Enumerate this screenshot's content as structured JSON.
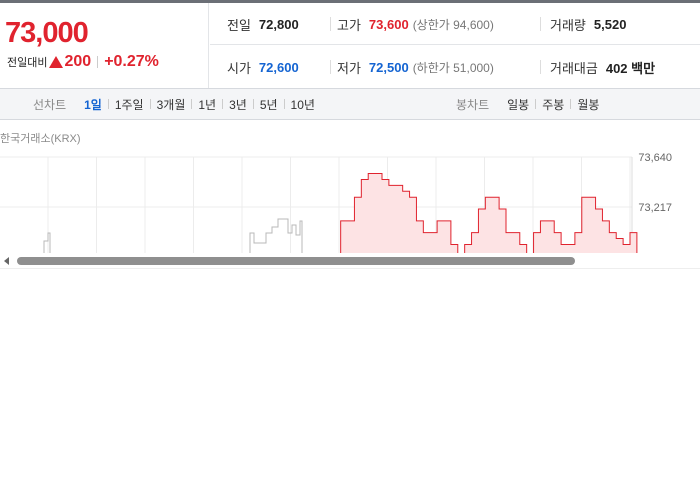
{
  "quote": {
    "price": "73,000",
    "change_label": "전일대비",
    "change_amount": "200",
    "change_pct": "+0.27%",
    "row1": {
      "prev_label": "전일",
      "prev_value": "72,800",
      "high_label": "고가",
      "high_value": "73,600",
      "upper_limit_text": "(상한가 94,600)",
      "volume_label": "거래량",
      "volume_value": "5,520"
    },
    "row2": {
      "open_label": "시가",
      "open_value": "72,600",
      "low_label": "저가",
      "low_value": "72,500",
      "lower_limit_text": "(하한가 51,000)",
      "amount_label": "거래대금",
      "amount_value": "402 백만"
    }
  },
  "line_tabs": {
    "title": "선차트",
    "items": [
      "1일",
      "1주일",
      "3개월",
      "1년",
      "3년",
      "5년",
      "10년"
    ],
    "active": "1일"
  },
  "candle_tabs": {
    "title": "봉차트",
    "items": [
      "일봉",
      "주봉",
      "월봉"
    ]
  },
  "chart_source": "한국거래소(KRX)",
  "colors": {
    "up": "#e0232e",
    "down": "#1464d2",
    "area_fill": "#fde3e4"
  },
  "chart_data": {
    "type": "line",
    "title": "",
    "y_ticks": [
      "73,640",
      "73,217"
    ],
    "y_tick_values": [
      73640,
      73217
    ],
    "x_labels": [],
    "series": [
      {
        "color": "#e0232e",
        "values": [
          72700,
          72700,
          72700,
          73100,
          73100,
          73300,
          73450,
          73500,
          73500,
          73450,
          73400,
          73400,
          73350,
          73300,
          73100,
          73000,
          73000,
          73100,
          73100,
          72900,
          72800,
          72900,
          73000,
          73200,
          73300,
          73300,
          73200,
          73000,
          73000,
          72900,
          72800,
          73000,
          73100,
          73100,
          73000,
          72900,
          72900,
          73000,
          73300,
          73300,
          73200,
          73100,
          73000,
          72950,
          72900,
          73000
        ]
      }
    ]
  }
}
